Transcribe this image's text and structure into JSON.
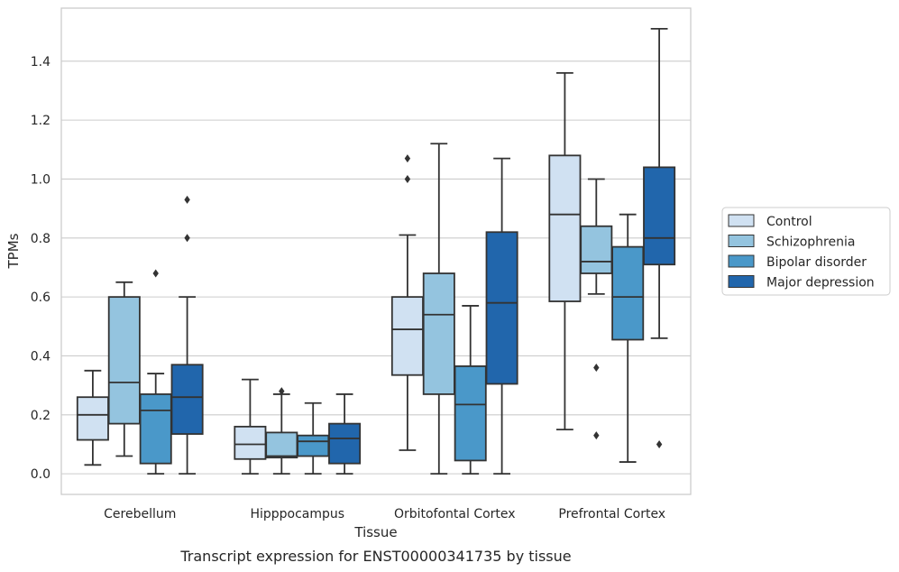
{
  "caption": "Transcript expression for ENST00000341735 by tissue",
  "chart_data": {
    "type": "box",
    "xlabel": "Tissue",
    "ylabel": "TPMs",
    "ylim": [
      -0.07,
      1.58
    ],
    "yticks": [
      "0.0",
      "0.2",
      "0.4",
      "0.6",
      "0.8",
      "1.0",
      "1.2",
      "1.4"
    ],
    "grid": "horizontal",
    "legend_position": "right",
    "categories": [
      "Cerebellum",
      "Hipppocampus",
      "Orbitofontal Cortex",
      "Prefrontal Cortex"
    ],
    "series": [
      {
        "name": "Control",
        "color": "#d0e1f2",
        "boxes": [
          {
            "whisker_low": 0.03,
            "q1": 0.115,
            "median": 0.2,
            "q3": 0.26,
            "whisker_high": 0.35,
            "outliers": []
          },
          {
            "whisker_low": 0.0,
            "q1": 0.05,
            "median": 0.1,
            "q3": 0.16,
            "whisker_high": 0.32,
            "outliers": []
          },
          {
            "whisker_low": 0.08,
            "q1": 0.335,
            "median": 0.49,
            "q3": 0.6,
            "whisker_high": 0.81,
            "outliers": [
              1.0,
              1.07
            ]
          },
          {
            "whisker_low": 0.15,
            "q1": 0.585,
            "median": 0.88,
            "q3": 1.08,
            "whisker_high": 1.36,
            "outliers": []
          }
        ]
      },
      {
        "name": "Schizophrenia",
        "color": "#94c4df",
        "boxes": [
          {
            "whisker_low": 0.06,
            "q1": 0.17,
            "median": 0.31,
            "q3": 0.6,
            "whisker_high": 0.65,
            "outliers": []
          },
          {
            "whisker_low": 0.0,
            "q1": 0.055,
            "median": 0.06,
            "q3": 0.14,
            "whisker_high": 0.27,
            "outliers": [
              0.28
            ]
          },
          {
            "whisker_low": 0.0,
            "q1": 0.27,
            "median": 0.54,
            "q3": 0.68,
            "whisker_high": 1.12,
            "outliers": []
          },
          {
            "whisker_low": 0.61,
            "q1": 0.68,
            "median": 0.72,
            "q3": 0.84,
            "whisker_high": 1.0,
            "outliers": [
              0.13,
              0.36
            ]
          }
        ]
      },
      {
        "name": "Bipolar disorder",
        "color": "#4a98c9",
        "boxes": [
          {
            "whisker_low": 0.0,
            "q1": 0.035,
            "median": 0.215,
            "q3": 0.27,
            "whisker_high": 0.34,
            "outliers": [
              0.68
            ]
          },
          {
            "whisker_low": 0.0,
            "q1": 0.06,
            "median": 0.11,
            "q3": 0.13,
            "whisker_high": 0.24,
            "outliers": []
          },
          {
            "whisker_low": 0.0,
            "q1": 0.045,
            "median": 0.235,
            "q3": 0.365,
            "whisker_high": 0.57,
            "outliers": []
          },
          {
            "whisker_low": 0.04,
            "q1": 0.455,
            "median": 0.6,
            "q3": 0.77,
            "whisker_high": 0.88,
            "outliers": []
          }
        ]
      },
      {
        "name": "Major depression",
        "color": "#2166ac",
        "boxes": [
          {
            "whisker_low": 0.0,
            "q1": 0.135,
            "median": 0.26,
            "q3": 0.37,
            "whisker_high": 0.6,
            "outliers": [
              0.8,
              0.93
            ]
          },
          {
            "whisker_low": 0.0,
            "q1": 0.035,
            "median": 0.12,
            "q3": 0.17,
            "whisker_high": 0.27,
            "outliers": []
          },
          {
            "whisker_low": 0.0,
            "q1": 0.305,
            "median": 0.58,
            "q3": 0.82,
            "whisker_high": 1.07,
            "outliers": []
          },
          {
            "whisker_low": 0.46,
            "q1": 0.71,
            "median": 0.8,
            "q3": 1.04,
            "whisker_high": 1.51,
            "outliers": [
              0.1
            ]
          }
        ]
      }
    ]
  }
}
